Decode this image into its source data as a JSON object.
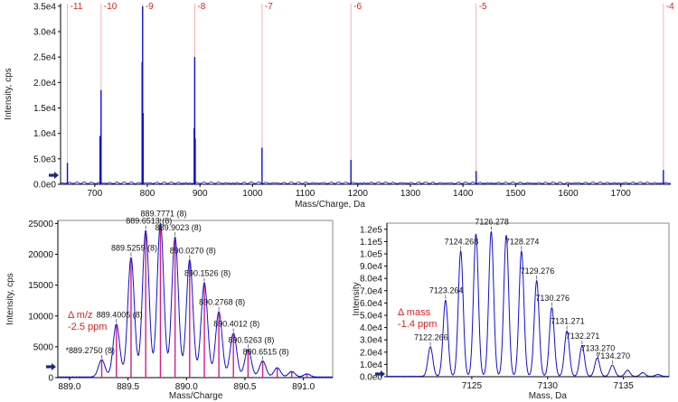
{
  "chart_data": [
    {
      "type": "line",
      "title": "",
      "xlabel": "Mass/Charge, Da",
      "ylabel": "Intensity, cps",
      "xlim": [
        635,
        1795
      ],
      "ylim": [
        0,
        35500
      ],
      "x_ticks": [
        700,
        800,
        900,
        1000,
        1100,
        1200,
        1300,
        1400,
        1500,
        1600,
        1700
      ],
      "y_ticks": [
        {
          "v": 0,
          "label": "0.0e0"
        },
        {
          "v": 5000,
          "label": "5.0e3"
        },
        {
          "v": 10000,
          "label": "1.0e4"
        },
        {
          "v": 15000,
          "label": "1.5e4"
        },
        {
          "v": 20000,
          "label": "2.0e4"
        },
        {
          "v": 25000,
          "label": "2.5e4"
        },
        {
          "v": 30000,
          "label": "3.0e4"
        },
        {
          "v": 35000,
          "label": "3.5e4"
        }
      ],
      "charge_states": [
        {
          "x": 648,
          "label": "-11"
        },
        {
          "x": 712,
          "label": "-10"
        },
        {
          "x": 791,
          "label": "-9"
        },
        {
          "x": 890,
          "label": "-8"
        },
        {
          "x": 1018,
          "label": "-7"
        },
        {
          "x": 1187,
          "label": "-6"
        },
        {
          "x": 1425,
          "label": "-5"
        },
        {
          "x": 1781,
          "label": "-4"
        }
      ],
      "peaks": [
        {
          "x": 648,
          "y": 4200
        },
        {
          "x": 710,
          "y": 9500
        },
        {
          "x": 712,
          "y": 18500
        },
        {
          "x": 790,
          "y": 24000
        },
        {
          "x": 791,
          "y": 35000
        },
        {
          "x": 792,
          "y": 14000
        },
        {
          "x": 889,
          "y": 11000
        },
        {
          "x": 890,
          "y": 25000
        },
        {
          "x": 891,
          "y": 9000
        },
        {
          "x": 1018,
          "y": 7200
        },
        {
          "x": 1187,
          "y": 4800
        },
        {
          "x": 1425,
          "y": 2600
        },
        {
          "x": 1781,
          "y": 2800
        }
      ]
    },
    {
      "type": "line",
      "title": "",
      "xlabel": "Mass/Charge",
      "ylabel": "Intensity, cps",
      "xlim": [
        888.9,
        891.25
      ],
      "ylim": [
        0,
        25500
      ],
      "x_ticks": [
        {
          "v": 889.0,
          "label": "889.0"
        },
        {
          "v": 889.5,
          "label": "889.5"
        },
        {
          "v": 890.0,
          "label": "890.0"
        },
        {
          "v": 890.5,
          "label": "890.5"
        },
        {
          "v": 891.0,
          "label": "891.0"
        }
      ],
      "y_ticks": [
        0,
        5000,
        10000,
        15000,
        20000,
        25000
      ],
      "series": [
        {
          "x": [
            889.275,
            889.4005,
            889.5259,
            889.6513,
            889.7771,
            889.9023,
            890.027,
            890.1526,
            890.2768,
            890.4012,
            890.5263,
            890.6515,
            890.776,
            890.9,
            891.03
          ],
          "values": [
            2800,
            8600,
            19400,
            23800,
            25000,
            22700,
            19000,
            15300,
            10600,
            7100,
            4500,
            2600,
            1500,
            900,
            500
          ]
        }
      ],
      "peak_labels": [
        {
          "x": 889.275,
          "y": 2800,
          "label": "*889.2750 (8)"
        },
        {
          "x": 889.4005,
          "y": 8600,
          "label": "889.4005 (8)"
        },
        {
          "x": 889.5259,
          "y": 19400,
          "label": "889.5259 (8)"
        },
        {
          "x": 889.6513,
          "y": 23800,
          "label": "889.6513 (8)"
        },
        {
          "x": 889.7771,
          "y": 25000,
          "label": "889.7771 (8)"
        },
        {
          "x": 889.9023,
          "y": 22700,
          "label": "889.9023 (8)"
        },
        {
          "x": 890.027,
          "y": 19000,
          "label": "890.0270 (8)"
        },
        {
          "x": 890.1526,
          "y": 15300,
          "label": "890.1526 (8)"
        },
        {
          "x": 890.2768,
          "y": 10600,
          "label": "890.2768 (8)"
        },
        {
          "x": 890.4012,
          "y": 7100,
          "label": "890.4012 (8)"
        },
        {
          "x": 890.5263,
          "y": 4500,
          "label": "890.5263 (8)"
        },
        {
          "x": 890.6515,
          "y": 2600,
          "label": "890.6515 (8)"
        }
      ],
      "annotation": [
        "Δ m/z",
        "-2.5 ppm"
      ]
    },
    {
      "type": "line",
      "title": "",
      "xlabel": "Mass, Da",
      "ylabel": "Intensity",
      "xlim": [
        7119.4,
        7138.0
      ],
      "ylim": [
        0,
        125000
      ],
      "x_ticks": [
        {
          "v": 7125,
          "label": "7125"
        },
        {
          "v": 7130,
          "label": "7130"
        },
        {
          "v": 7135,
          "label": "7135"
        }
      ],
      "y_ticks": [
        {
          "v": 0,
          "label": "0.0e0"
        },
        {
          "v": 10000,
          "label": "1.0e4"
        },
        {
          "v": 20000,
          "label": "2.0e4"
        },
        {
          "v": 30000,
          "label": "3.0e4"
        },
        {
          "v": 40000,
          "label": "4.0e4"
        },
        {
          "v": 50000,
          "label": "5.0e4"
        },
        {
          "v": 60000,
          "label": "6.0e4"
        },
        {
          "v": 70000,
          "label": "7.0e4"
        },
        {
          "v": 80000,
          "label": "8.0e4"
        },
        {
          "v": 90000,
          "label": "9.0e4"
        },
        {
          "v": 100000,
          "label": "1.0e5"
        },
        {
          "v": 110000,
          "label": "1.1e5"
        },
        {
          "v": 120000,
          "label": "1.2e5"
        }
      ],
      "series": [
        {
          "x": [
            7122.266,
            7123.264,
            7124.268,
            7125.27,
            7126.278,
            7127.27,
            7128.274,
            7129.276,
            7130.276,
            7131.271,
            7132.271,
            7133.27,
            7134.27,
            7135.27,
            7136.27,
            7137.27
          ],
          "values": [
            24000,
            62000,
            102000,
            116000,
            118000,
            115000,
            102000,
            78000,
            56000,
            37000,
            25000,
            15000,
            9000,
            5000,
            3000,
            1500
          ]
        }
      ],
      "peak_labels": [
        {
          "x": 7122.266,
          "y": 24000,
          "label": "7122.266"
        },
        {
          "x": 7123.264,
          "y": 62000,
          "label": "7123.264"
        },
        {
          "x": 7124.268,
          "y": 102000,
          "label": "7124.268"
        },
        {
          "x": 7126.278,
          "y": 118000,
          "label": "7126.278"
        },
        {
          "x": 7128.274,
          "y": 102000,
          "label": "7128.274"
        },
        {
          "x": 7129.276,
          "y": 78000,
          "label": "7129.276"
        },
        {
          "x": 7130.276,
          "y": 56000,
          "label": "7130.276"
        },
        {
          "x": 7131.271,
          "y": 37000,
          "label": "7131.271"
        },
        {
          "x": 7132.271,
          "y": 25000,
          "label": "7132.271"
        },
        {
          "x": 7133.27,
          "y": 15000,
          "label": "7133.270"
        },
        {
          "x": 7134.27,
          "y": 9000,
          "label": "7134.270"
        }
      ],
      "annotation": [
        "Δ mass",
        "-1.4 ppm"
      ]
    }
  ],
  "colors": {
    "trace": "#1010d0",
    "theoretical": "#d0208a",
    "charge_line": "#f2b3b3",
    "charge_text": "#e02020",
    "annotation": "#e02020",
    "arrow": "#1a2a7a"
  }
}
